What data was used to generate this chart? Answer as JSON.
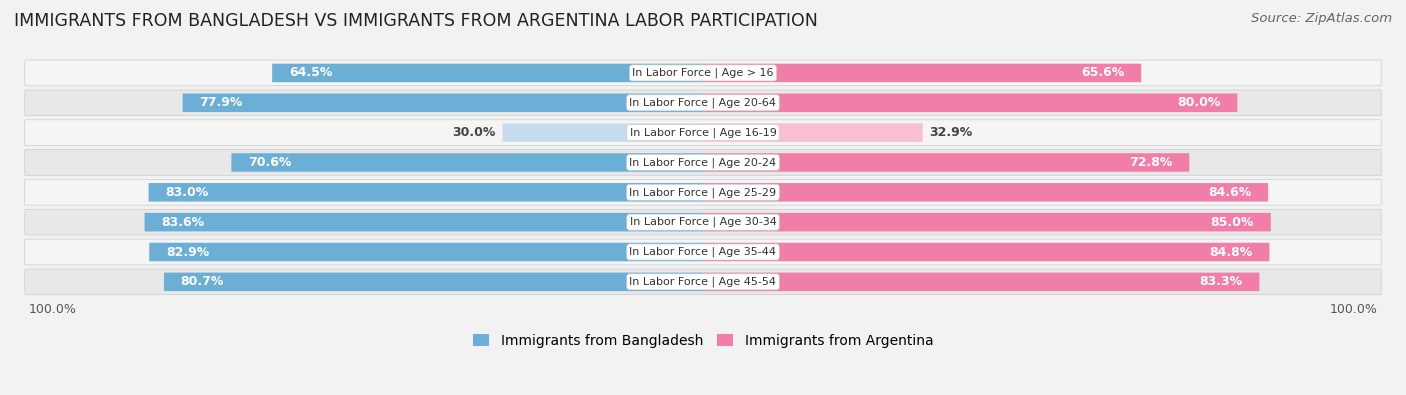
{
  "title": "IMMIGRANTS FROM BANGLADESH VS IMMIGRANTS FROM ARGENTINA LABOR PARTICIPATION",
  "source": "Source: ZipAtlas.com",
  "categories": [
    "In Labor Force | Age > 16",
    "In Labor Force | Age 20-64",
    "In Labor Force | Age 16-19",
    "In Labor Force | Age 20-24",
    "In Labor Force | Age 25-29",
    "In Labor Force | Age 30-34",
    "In Labor Force | Age 35-44",
    "In Labor Force | Age 45-54"
  ],
  "bangladesh_values": [
    64.5,
    77.9,
    30.0,
    70.6,
    83.0,
    83.6,
    82.9,
    80.7
  ],
  "argentina_values": [
    65.6,
    80.0,
    32.9,
    72.8,
    84.6,
    85.0,
    84.8,
    83.3
  ],
  "bangladesh_color": "#6BAED6",
  "argentina_color": "#F07EA8",
  "bangladesh_light_color": "#C6DCEE",
  "argentina_light_color": "#F9C0D3",
  "label_bangladesh": "Immigrants from Bangladesh",
  "label_argentina": "Immigrants from Argentina",
  "background_color": "#f2f2f2",
  "row_bg_color": "#e8e8e8",
  "row_alt_color": "#f5f5f5",
  "max_value": 100.0,
  "title_fontsize": 12.5,
  "source_fontsize": 9.5,
  "bar_label_fontsize": 9,
  "category_fontsize": 8,
  "legend_fontsize": 10
}
